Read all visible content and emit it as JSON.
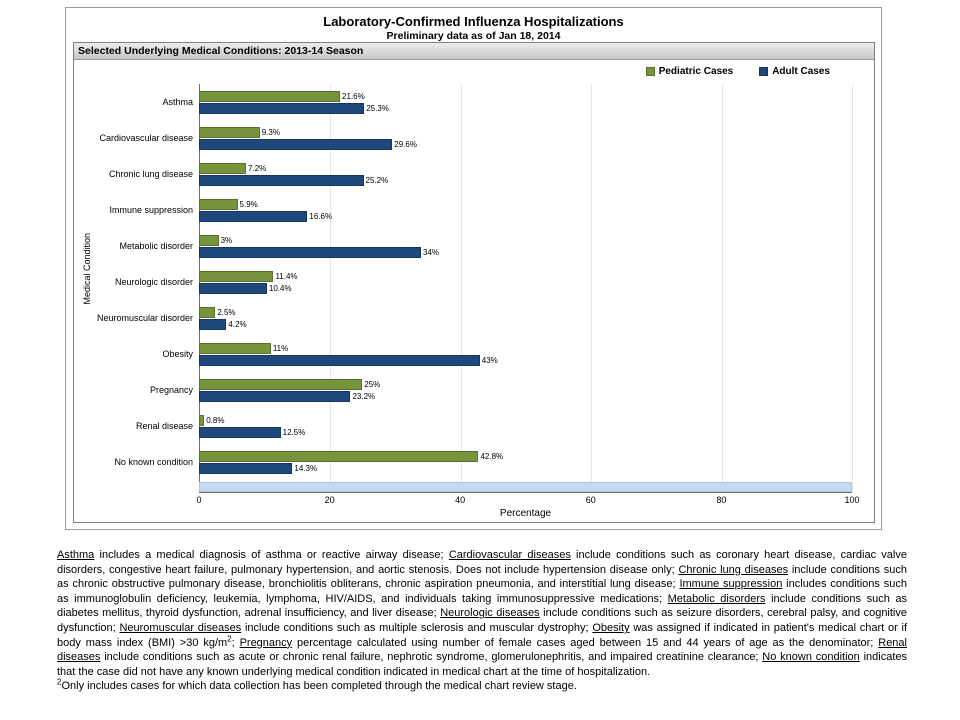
{
  "header": {
    "title": "Laboratory-Confirmed Influenza Hospitalizations",
    "subtitle": "Preliminary data as of Jan 18, 2014",
    "panel_label": "Selected Underlying Medical Conditions: 2013-14 Season"
  },
  "legend": [
    {
      "label": "Pediatric Cases",
      "color": "#77933C",
      "border": "#5a7030"
    },
    {
      "label": "Adult Cases",
      "color": "#1F497D",
      "border": "#16355c"
    }
  ],
  "chart_data": {
    "type": "bar",
    "orientation": "horizontal",
    "title": "Laboratory-Confirmed Influenza Hospitalizations",
    "subtitle": "Preliminary data as of Jan 18, 2014",
    "categories": [
      "Asthma",
      "Cardiovascular disease",
      "Chronic lung disease",
      "Immune suppression",
      "Metabolic disorder",
      "Neurologic disorder",
      "Neuromuscular disorder",
      "Obesity",
      "Pregnancy",
      "Renal disease",
      "No known condition"
    ],
    "series": [
      {
        "name": "Pediatric Cases",
        "color": "#77933C",
        "border": "#5a7030",
        "values": [
          21.6,
          9.3,
          7.2,
          5.9,
          3,
          11.4,
          2.5,
          11,
          25,
          0.8,
          42.8
        ],
        "labels": [
          "21.6%",
          "9.3%",
          "7.2%",
          "5.9%",
          "3%",
          "11.4%",
          "2.5%",
          "11%",
          "25%",
          "0.8%",
          "42.8%"
        ]
      },
      {
        "name": "Adult Cases",
        "color": "#1F497D",
        "border": "#16355c",
        "values": [
          25.3,
          29.6,
          25.2,
          16.6,
          34,
          10.4,
          4.2,
          43,
          23.2,
          12.5,
          14.3
        ],
        "labels": [
          "25.3%",
          "29.6%",
          "25.2%",
          "16.6%",
          "34%",
          "10.4%",
          "4.2%",
          "43%",
          "23.2%",
          "12.5%",
          "14.3%"
        ]
      }
    ],
    "xlabel": "Percentage",
    "ylabel": "Medical Condition",
    "xlim": [
      0,
      100
    ],
    "xticks": [
      0,
      20,
      40,
      60,
      80,
      100
    ],
    "grid": "vertical-light",
    "legend_position": "top-right",
    "baseline_band": {
      "value": 100,
      "color": "#C5D9F1"
    }
  },
  "footnotes": {
    "paragraph": [
      {
        "text": "Asthma",
        "u": true
      },
      {
        "text": " includes a medical diagnosis of asthma or reactive airway disease; "
      },
      {
        "text": "Cardiovascular diseases",
        "u": true
      },
      {
        "text": " include conditions such as coronary heart disease, cardiac valve disorders, congestive heart failure, pulmonary hypertension, and aortic stenosis.  Does not include hypertension disease only;  "
      },
      {
        "text": "Chronic lung diseases",
        "u": true
      },
      {
        "text": " include conditions such as chronic obstructive pulmonary disease, bronchiolitis obliterans, chronic aspiration pneumonia, and interstitial lung disease;  "
      },
      {
        "text": "Immune suppression",
        "u": true
      },
      {
        "text": " includes conditions such as immunoglobulin deficiency, leukemia, lymphoma, HIV/AIDS,  and individuals taking immunosuppressive medications;  "
      },
      {
        "text": "Metabolic disorders",
        "u": true
      },
      {
        "text": " include conditions such as diabetes mellitus, thyroid dysfunction, adrenal insufficiency, and liver disease;  "
      },
      {
        "text": "Neurologic diseases",
        "u": true
      },
      {
        "text": " include conditions such as seizure disorders, cerebral palsy, and cognitive dysfunction;  "
      },
      {
        "text": "Neuromuscular diseases",
        "u": true
      },
      {
        "text": " include conditions such as multiple sclerosis and muscular dystrophy;  "
      },
      {
        "text": "Obesity",
        "u": true
      },
      {
        "text": " was assigned if indicated in patient's medical chart or if body mass index (BMI) >30 kg/m"
      },
      {
        "text": "2",
        "sup": true
      },
      {
        "text": ";  "
      },
      {
        "text": "Pregnancy",
        "u": true
      },
      {
        "text": " percentage calculated using number of female cases aged between 15 and 44 years of age as the denominator;  "
      },
      {
        "text": "Renal diseases",
        "u": true
      },
      {
        "text": " include conditions such as acute or chronic renal failure, nephrotic syndrome, glomerulonephritis, and impaired creatinine clearance;  "
      },
      {
        "text": "No known condition",
        "u": true
      },
      {
        "text": " indicates that the case did not have any known underlying medical condition indicated in medical chart at the time of hospitalization."
      }
    ],
    "footnote2": [
      {
        "text": "2",
        "sup": true
      },
      {
        "text": "Only includes cases for which data collection has been completed through the medical chart review stage."
      }
    ]
  }
}
